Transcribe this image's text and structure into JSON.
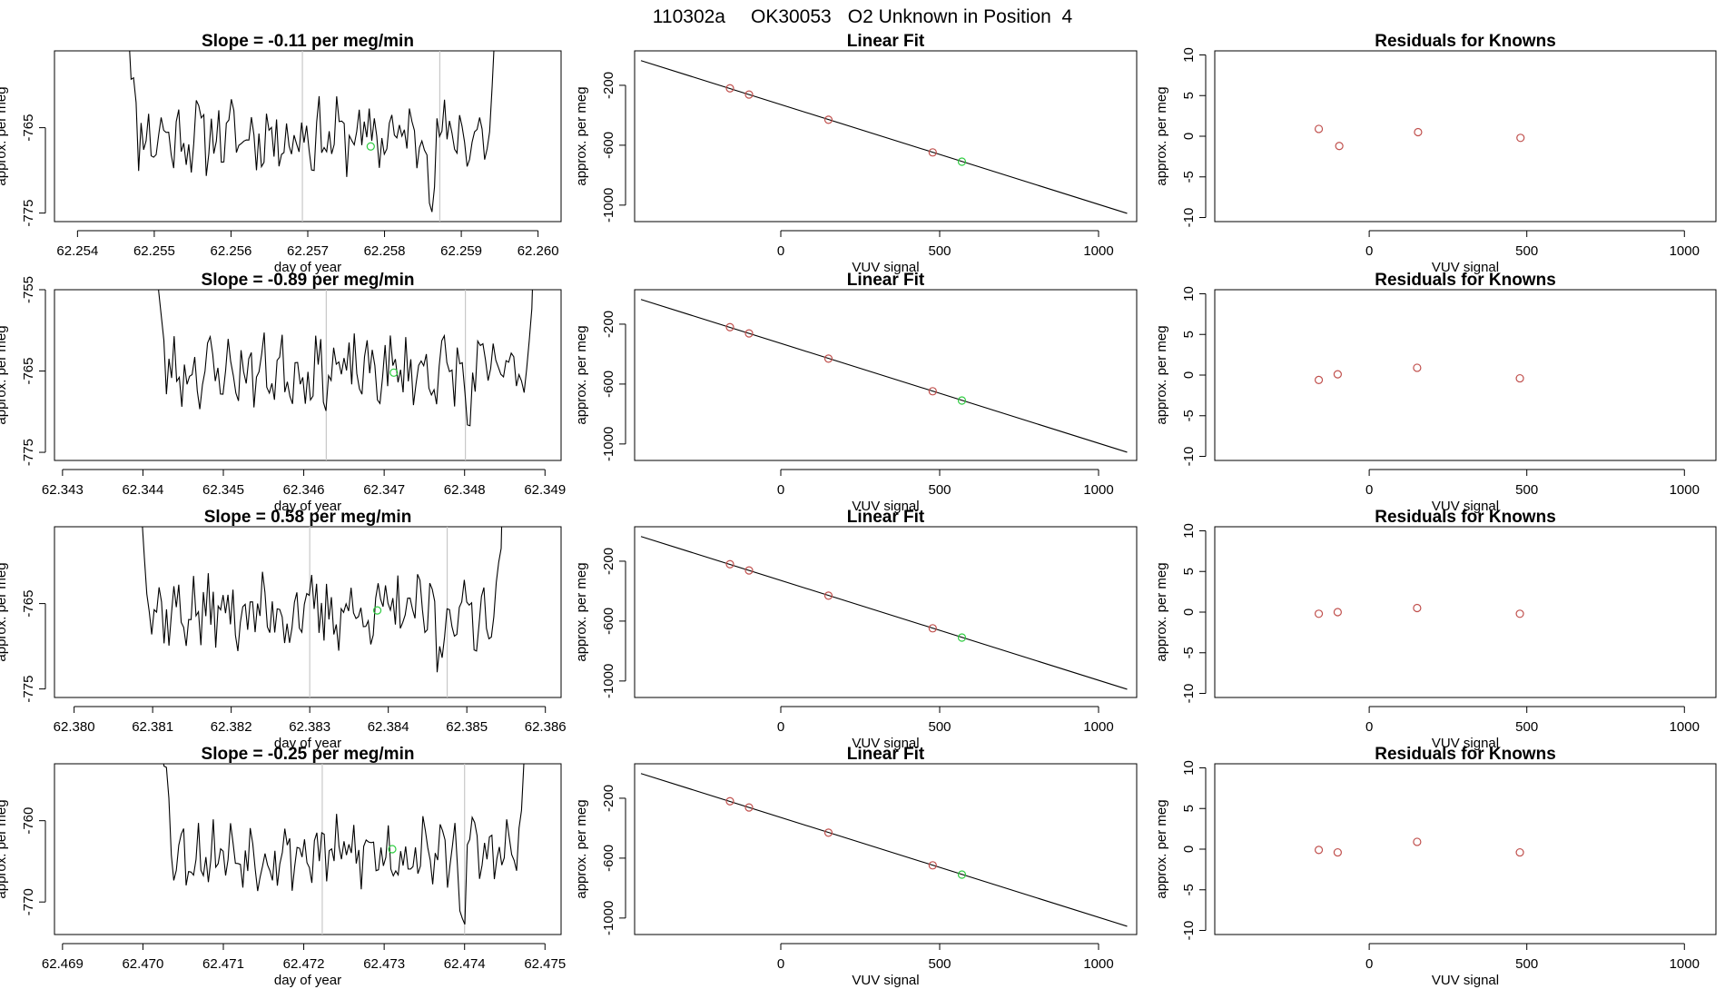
{
  "header": {
    "run_id": "110302a",
    "tank_id": "OK30053",
    "description": "O2 Unknown in Position  4"
  },
  "colors": {
    "trace": "#000000",
    "known_point": "#c0504d",
    "unknown_point": "#2ecc40",
    "marker_line": "#c8c8c8",
    "fit_line": "#000000"
  },
  "chart_data": [
    {
      "type": "line",
      "panel": "time-series",
      "row": 1,
      "title": "Slope =  -0.11  per meg/min",
      "xlabel": "day of year",
      "ylabel": "approx. per meg",
      "xlim": [
        62.2537,
        62.2603
      ],
      "ylim": [
        -776,
        -756
      ],
      "x_ticks": [
        {
          "v": 62.254,
          "label": "62.254"
        },
        {
          "v": 62.255,
          "label": "62.255"
        },
        {
          "v": 62.256,
          "label": "62.256"
        },
        {
          "v": 62.257,
          "label": "62.257"
        },
        {
          "v": 62.258,
          "label": "62.258"
        },
        {
          "v": 62.259,
          "label": "62.259"
        },
        {
          "v": 62.26,
          "label": "62.260"
        }
      ],
      "y_ticks": [
        {
          "v": -765,
          "label": "-765"
        },
        {
          "v": -775,
          "label": "-775"
        }
      ],
      "trace_x_range": [
        62.2546,
        62.2595
      ],
      "trace_mean": -766,
      "trace_seed": 11,
      "marker_lines": [
        62.25693,
        62.25872
      ],
      "unknown_point": {
        "x": 62.25782,
        "y": -767.2
      }
    },
    {
      "type": "line",
      "panel": "linear-fit",
      "row": 1,
      "title": "Linear Fit",
      "xlabel": "VUV signal",
      "ylabel": "approx. per meg",
      "xlim": [
        -460,
        1120
      ],
      "ylim": [
        -1110,
        30
      ],
      "x_ticks": [
        {
          "v": 0,
          "label": "0"
        },
        {
          "v": 500,
          "label": "500"
        },
        {
          "v": 1000,
          "label": "1000"
        }
      ],
      "y_ticks": [
        {
          "v": -200,
          "label": "-200"
        },
        {
          "v": -600,
          "label": "-600"
        },
        {
          "v": -1000,
          "label": "-1000"
        }
      ],
      "fit_line": {
        "x": [
          -440,
          1090
        ],
        "y": [
          -35,
          -1055
        ]
      },
      "knowns": [
        {
          "x": -160,
          "y": -220
        },
        {
          "x": -100,
          "y": -262
        },
        {
          "x": 150,
          "y": -430
        },
        {
          "x": 478,
          "y": -648
        }
      ],
      "unknown": {
        "x": 570,
        "y": -710
      }
    },
    {
      "type": "scatter",
      "panel": "residuals",
      "row": 1,
      "title": "Residuals for Knowns",
      "xlabel": "VUV signal",
      "ylabel": "approx. per meg",
      "xlim": [
        -490,
        1100
      ],
      "ylim": [
        -10.5,
        10.5
      ],
      "x_ticks": [
        {
          "v": 0,
          "label": "0"
        },
        {
          "v": 500,
          "label": "500"
        },
        {
          "v": 1000,
          "label": "1000"
        }
      ],
      "y_ticks": [
        {
          "v": 10,
          "label": "10"
        },
        {
          "v": 5,
          "label": "5"
        },
        {
          "v": 0,
          "label": "0"
        },
        {
          "v": -5,
          "label": "-5"
        },
        {
          "v": -10,
          "label": "-10"
        }
      ],
      "points": [
        {
          "x": -160,
          "y": 0.9
        },
        {
          "x": -95,
          "y": -1.2
        },
        {
          "x": 155,
          "y": 0.5
        },
        {
          "x": 480,
          "y": -0.2
        }
      ]
    },
    {
      "type": "line",
      "panel": "time-series",
      "row": 2,
      "title": "Slope =  -0.89  per meg/min",
      "xlabel": "day of year",
      "ylabel": "approx. per meg",
      "xlim": [
        62.3429,
        62.3492
      ],
      "ylim": [
        -776,
        -755
      ],
      "x_ticks": [
        {
          "v": 62.343,
          "label": "62.343"
        },
        {
          "v": 62.344,
          "label": "62.344"
        },
        {
          "v": 62.345,
          "label": "62.345"
        },
        {
          "v": 62.346,
          "label": "62.346"
        },
        {
          "v": 62.347,
          "label": "62.347"
        },
        {
          "v": 62.348,
          "label": "62.348"
        },
        {
          "v": 62.349,
          "label": "62.349"
        }
      ],
      "y_ticks": [
        {
          "v": -755,
          "label": "-755"
        },
        {
          "v": -765,
          "label": "-765"
        },
        {
          "v": -775,
          "label": "-775"
        }
      ],
      "trace_x_range": [
        62.3441,
        62.3489
      ],
      "trace_mean": -765,
      "trace_seed": 23,
      "marker_lines": [
        62.34628,
        62.34801
      ],
      "unknown_point": {
        "x": 62.34712,
        "y": -765.2
      }
    },
    {
      "type": "line",
      "panel": "linear-fit",
      "row": 2,
      "title": "Linear Fit",
      "xlabel": "VUV signal",
      "ylabel": "approx. per meg",
      "xlim": [
        -460,
        1120
      ],
      "ylim": [
        -1110,
        30
      ],
      "x_ticks": [
        {
          "v": 0,
          "label": "0"
        },
        {
          "v": 500,
          "label": "500"
        },
        {
          "v": 1000,
          "label": "1000"
        }
      ],
      "y_ticks": [
        {
          "v": -200,
          "label": "-200"
        },
        {
          "v": -600,
          "label": "-600"
        },
        {
          "v": -1000,
          "label": "-1000"
        }
      ],
      "fit_line": {
        "x": [
          -440,
          1090
        ],
        "y": [
          -35,
          -1055
        ]
      },
      "knowns": [
        {
          "x": -160,
          "y": -220
        },
        {
          "x": -100,
          "y": -262
        },
        {
          "x": 150,
          "y": -430
        },
        {
          "x": 478,
          "y": -648
        }
      ],
      "unknown": {
        "x": 570,
        "y": -710
      }
    },
    {
      "type": "scatter",
      "panel": "residuals",
      "row": 2,
      "title": "Residuals for Knowns",
      "xlabel": "VUV signal",
      "ylabel": "approx. per meg",
      "xlim": [
        -490,
        1100
      ],
      "ylim": [
        -10.5,
        10.5
      ],
      "x_ticks": [
        {
          "v": 0,
          "label": "0"
        },
        {
          "v": 500,
          "label": "500"
        },
        {
          "v": 1000,
          "label": "1000"
        }
      ],
      "y_ticks": [
        {
          "v": 10,
          "label": "10"
        },
        {
          "v": 5,
          "label": "5"
        },
        {
          "v": 0,
          "label": "0"
        },
        {
          "v": -5,
          "label": "-5"
        },
        {
          "v": -10,
          "label": "-10"
        }
      ],
      "points": [
        {
          "x": -160,
          "y": -0.6
        },
        {
          "x": -100,
          "y": 0.1
        },
        {
          "x": 152,
          "y": 0.9
        },
        {
          "x": 478,
          "y": -0.4
        }
      ]
    },
    {
      "type": "line",
      "panel": "time-series",
      "row": 3,
      "title": "Slope =  0.58  per meg/min",
      "xlabel": "day of year",
      "ylabel": "approx. per meg",
      "xlim": [
        62.37975,
        62.3862
      ],
      "ylim": [
        -776,
        -756
      ],
      "x_ticks": [
        {
          "v": 62.38,
          "label": "62.380"
        },
        {
          "v": 62.381,
          "label": "62.381"
        },
        {
          "v": 62.382,
          "label": "62.382"
        },
        {
          "v": 62.383,
          "label": "62.383"
        },
        {
          "v": 62.384,
          "label": "62.384"
        },
        {
          "v": 62.385,
          "label": "62.385"
        },
        {
          "v": 62.386,
          "label": "62.386"
        }
      ],
      "y_ticks": [
        {
          "v": -765,
          "label": "-765"
        },
        {
          "v": -775,
          "label": "-775"
        }
      ],
      "trace_x_range": [
        62.3808,
        62.3855
      ],
      "trace_mean": -766,
      "trace_seed": 37,
      "marker_lines": [
        62.383,
        62.38475
      ],
      "unknown_point": {
        "x": 62.38386,
        "y": -765.8
      }
    },
    {
      "type": "line",
      "panel": "linear-fit",
      "row": 3,
      "title": "Linear Fit",
      "xlabel": "VUV signal",
      "ylabel": "approx. per meg",
      "xlim": [
        -460,
        1120
      ],
      "ylim": [
        -1110,
        30
      ],
      "x_ticks": [
        {
          "v": 0,
          "label": "0"
        },
        {
          "v": 500,
          "label": "500"
        },
        {
          "v": 1000,
          "label": "1000"
        }
      ],
      "y_ticks": [
        {
          "v": -200,
          "label": "-200"
        },
        {
          "v": -600,
          "label": "-600"
        },
        {
          "v": -1000,
          "label": "-1000"
        }
      ],
      "fit_line": {
        "x": [
          -440,
          1090
        ],
        "y": [
          -35,
          -1055
        ]
      },
      "knowns": [
        {
          "x": -160,
          "y": -220
        },
        {
          "x": -100,
          "y": -262
        },
        {
          "x": 150,
          "y": -430
        },
        {
          "x": 478,
          "y": -648
        }
      ],
      "unknown": {
        "x": 570,
        "y": -710
      }
    },
    {
      "type": "scatter",
      "panel": "residuals",
      "row": 3,
      "title": "Residuals for Knowns",
      "xlabel": "VUV signal",
      "ylabel": "approx. per meg",
      "xlim": [
        -490,
        1100
      ],
      "ylim": [
        -10.5,
        10.5
      ],
      "x_ticks": [
        {
          "v": 0,
          "label": "0"
        },
        {
          "v": 500,
          "label": "500"
        },
        {
          "v": 1000,
          "label": "1000"
        }
      ],
      "y_ticks": [
        {
          "v": 10,
          "label": "10"
        },
        {
          "v": 5,
          "label": "5"
        },
        {
          "v": 0,
          "label": "0"
        },
        {
          "v": -5,
          "label": "-5"
        },
        {
          "v": -10,
          "label": "-10"
        }
      ],
      "points": [
        {
          "x": -160,
          "y": -0.2
        },
        {
          "x": -100,
          "y": 0.0
        },
        {
          "x": 152,
          "y": 0.5
        },
        {
          "x": 478,
          "y": -0.2
        }
      ]
    },
    {
      "type": "line",
      "panel": "time-series",
      "row": 4,
      "title": "Slope =  -0.25  per meg/min",
      "xlabel": "day of year",
      "ylabel": "approx. per meg",
      "xlim": [
        62.4689,
        62.4752
      ],
      "ylim": [
        -774,
        -753
      ],
      "x_ticks": [
        {
          "v": 62.469,
          "label": "62.469"
        },
        {
          "v": 62.47,
          "label": "62.470"
        },
        {
          "v": 62.471,
          "label": "62.471"
        },
        {
          "v": 62.472,
          "label": "62.472"
        },
        {
          "v": 62.473,
          "label": "62.473"
        },
        {
          "v": 62.474,
          "label": "62.474"
        },
        {
          "v": 62.475,
          "label": "62.475"
        }
      ],
      "y_ticks": [
        {
          "v": -760,
          "label": "-760"
        },
        {
          "v": -770,
          "label": "-770"
        }
      ],
      "trace_x_range": [
        62.4702,
        62.4748
      ],
      "trace_mean": -764,
      "trace_seed": 53,
      "marker_lines": [
        62.47223,
        62.474
      ],
      "unknown_point": {
        "x": 62.4731,
        "y": -763.5
      }
    },
    {
      "type": "line",
      "panel": "linear-fit",
      "row": 4,
      "title": "Linear Fit",
      "xlabel": "VUV signal",
      "ylabel": "approx. per meg",
      "xlim": [
        -460,
        1120
      ],
      "ylim": [
        -1110,
        30
      ],
      "x_ticks": [
        {
          "v": 0,
          "label": "0"
        },
        {
          "v": 500,
          "label": "500"
        },
        {
          "v": 1000,
          "label": "1000"
        }
      ],
      "y_ticks": [
        {
          "v": -200,
          "label": "-200"
        },
        {
          "v": -600,
          "label": "-600"
        },
        {
          "v": -1000,
          "label": "-1000"
        }
      ],
      "fit_line": {
        "x": [
          -440,
          1090
        ],
        "y": [
          -35,
          -1055
        ]
      },
      "knowns": [
        {
          "x": -160,
          "y": -220
        },
        {
          "x": -100,
          "y": -262
        },
        {
          "x": 150,
          "y": -430
        },
        {
          "x": 478,
          "y": -648
        }
      ],
      "unknown": {
        "x": 570,
        "y": -710
      }
    },
    {
      "type": "scatter",
      "panel": "residuals",
      "row": 4,
      "title": "Residuals for Knowns",
      "xlabel": "VUV signal",
      "ylabel": "approx. per meg",
      "xlim": [
        -490,
        1100
      ],
      "ylim": [
        -10.5,
        10.5
      ],
      "x_ticks": [
        {
          "v": 0,
          "label": "0"
        },
        {
          "v": 500,
          "label": "500"
        },
        {
          "v": 1000,
          "label": "1000"
        }
      ],
      "y_ticks": [
        {
          "v": 10,
          "label": "10"
        },
        {
          "v": 5,
          "label": "5"
        },
        {
          "v": 0,
          "label": "0"
        },
        {
          "v": -5,
          "label": "-5"
        },
        {
          "v": -10,
          "label": "-10"
        }
      ],
      "points": [
        {
          "x": -160,
          "y": -0.1
        },
        {
          "x": -100,
          "y": -0.4
        },
        {
          "x": 152,
          "y": 0.9
        },
        {
          "x": 478,
          "y": -0.4
        }
      ]
    }
  ]
}
